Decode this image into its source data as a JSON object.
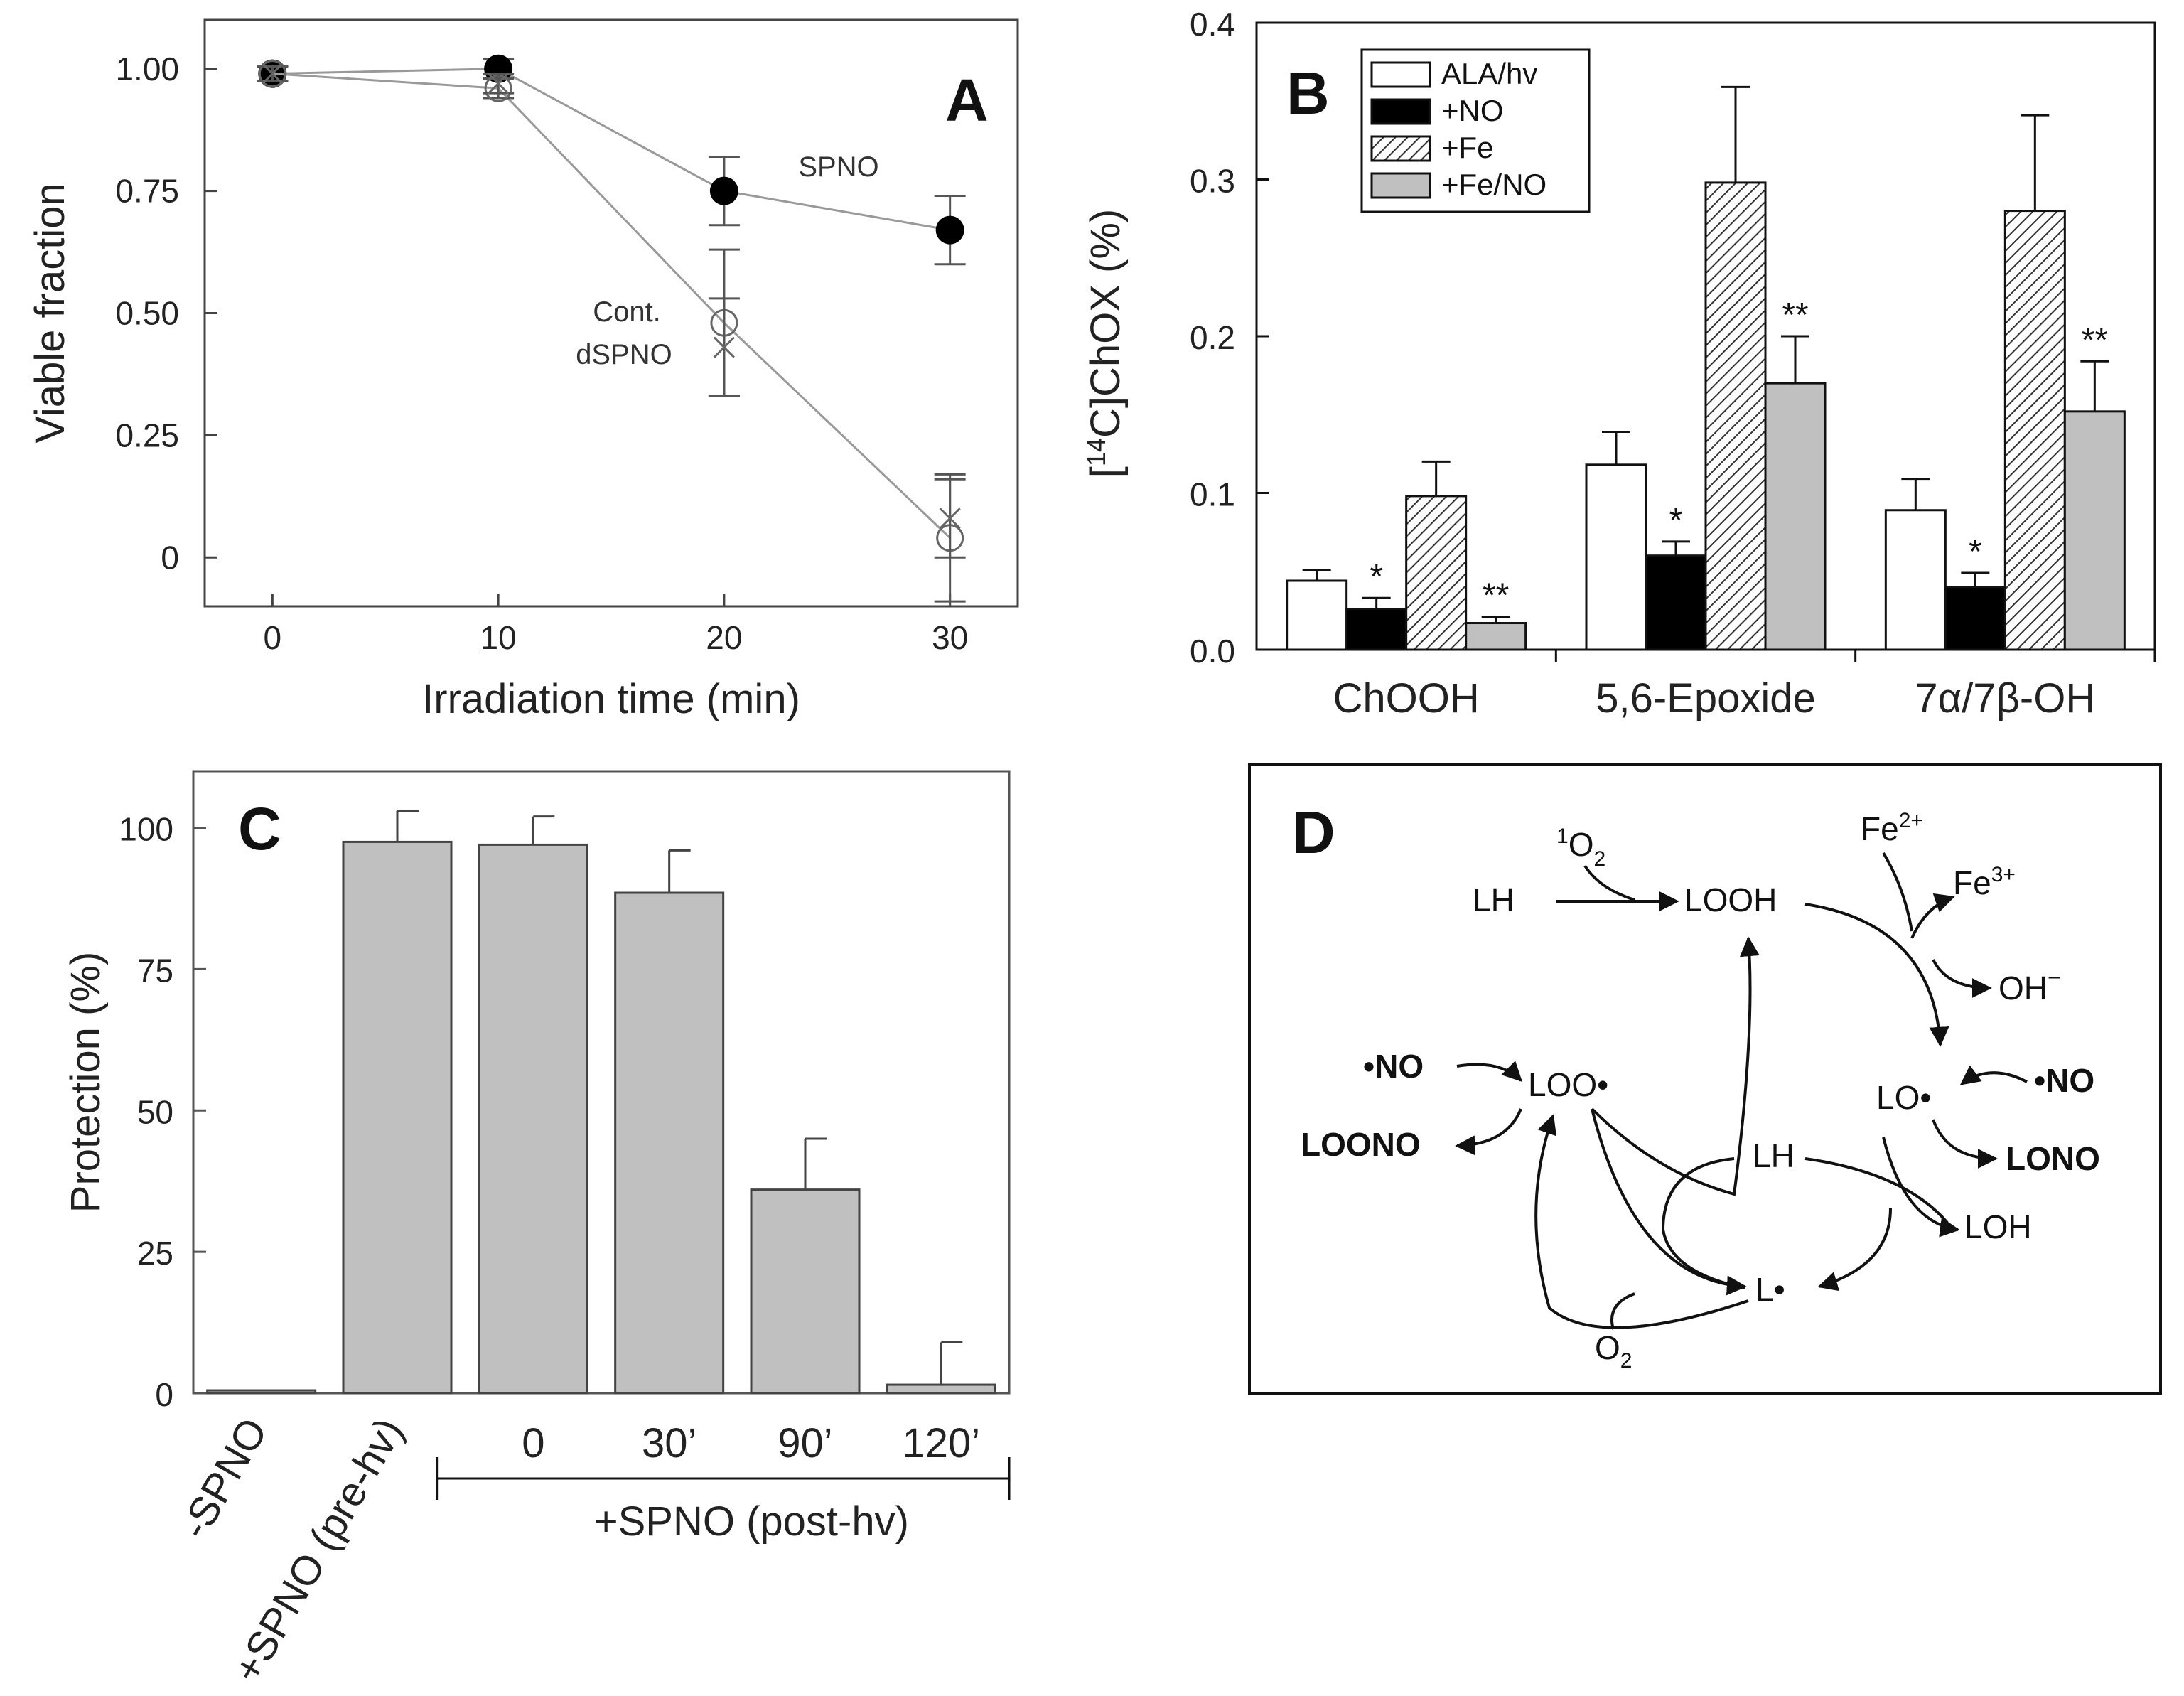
{
  "chart_data": [
    {
      "panel": "A",
      "type": "line",
      "label": "A",
      "xlabel": "Irradiation time (min)",
      "ylabel": "Viable fraction",
      "xlim": [
        -3,
        33
      ],
      "ylim": [
        -0.1,
        1.1
      ],
      "xticks": [
        0,
        10,
        20,
        30
      ],
      "yticks": [
        1.0,
        0.75,
        0.5,
        0.25,
        0
      ],
      "ytick_labels": [
        "1.00",
        "0.75",
        "0.50",
        "0.25",
        "0"
      ],
      "series": [
        {
          "name": "SPNO",
          "marker": "filled-circle",
          "x": [
            0,
            10,
            20,
            30
          ],
          "y": [
            0.99,
            1.0,
            0.75,
            0.67
          ],
          "err": [
            0.015,
            0.02,
            0.07,
            0.07
          ]
        },
        {
          "name": "Cont.",
          "marker": "open-circle",
          "x": [
            0,
            10,
            20,
            30
          ],
          "y": [
            0.99,
            0.96,
            0.48,
            0.04
          ],
          "err": [
            0.015,
            0.02,
            0.15,
            0.13
          ]
        },
        {
          "name": "dSPNO",
          "marker": "cross",
          "x": [
            0,
            10,
            20,
            30
          ],
          "y": [
            0.99,
            0.97,
            0.43,
            0.08
          ],
          "err": [
            0.015,
            0.02,
            0.1,
            0.08
          ]
        }
      ],
      "annotations": {
        "spno": "SPNO",
        "cont": "Cont.",
        "dspno": "dSPNO"
      }
    },
    {
      "panel": "B",
      "type": "bar",
      "label": "B",
      "ylabel_main": "ChOX (%)",
      "ylabel_iso": "14",
      "ylabel_bracket_open": "[",
      "ylabel_bracket_close": "C]",
      "ylim": [
        0,
        0.4
      ],
      "yticks": [
        0.0,
        0.1,
        0.2,
        0.3,
        0.4
      ],
      "ytick_labels": [
        "0.0",
        "0.1",
        "0.2",
        "0.3",
        "0.4"
      ],
      "categories": [
        "ChOOH",
        "5,6-Epoxide",
        "7α/7β-OH"
      ],
      "series": [
        {
          "name": "ALA/hv",
          "fill": "white",
          "values": [
            0.044,
            0.118,
            0.089
          ],
          "err": [
            0.007,
            0.021,
            0.02
          ],
          "sig": [
            "",
            "",
            ""
          ]
        },
        {
          "name": "+NO",
          "fill": "black",
          "values": [
            0.026,
            0.06,
            0.04
          ],
          "err": [
            0.007,
            0.009,
            0.009
          ],
          "sig": [
            "*",
            "*",
            "*"
          ]
        },
        {
          "name": "+Fe",
          "fill": "hatch",
          "values": [
            0.098,
            0.298,
            0.28
          ],
          "err": [
            0.022,
            0.061,
            0.061
          ],
          "sig": [
            "",
            "",
            ""
          ]
        },
        {
          "name": "+Fe/NO",
          "fill": "gray",
          "values": [
            0.017,
            0.17,
            0.152
          ],
          "err": [
            0.004,
            0.03,
            0.032
          ],
          "sig": [
            "**",
            "**",
            "**"
          ]
        }
      ],
      "legend": [
        "ALA/hv",
        "+NO",
        "+Fe",
        "+Fe/NO"
      ],
      "legend_position": "top-left"
    },
    {
      "panel": "C",
      "type": "bar",
      "label": "C",
      "ylabel": "Protection (%)",
      "ylim": [
        0,
        110
      ],
      "yticks": [
        0,
        25,
        50,
        75,
        100
      ],
      "ytick_labels": [
        "0",
        "25",
        "50",
        "75",
        "100"
      ],
      "categories": [
        "-SPNO",
        "+SPNO (pre-hv)",
        "0",
        "30’",
        "90’",
        "120’"
      ],
      "values": [
        0.5,
        97.5,
        97,
        88.5,
        36,
        1.5
      ],
      "err": [
        0,
        5.5,
        5,
        7.5,
        9,
        7.5
      ],
      "group_label": "+SPNO (post-hv)"
    }
  ],
  "diagram": {
    "panel": "D",
    "label": "D",
    "nodes": {
      "lh_top": "LH",
      "singlet_o2": "O",
      "singlet_o2_sup": "1",
      "singlet_o2_sub": "2",
      "looh": "LOOH",
      "fe2": "Fe",
      "fe2_sup": "2+",
      "fe3": "Fe",
      "fe3_sup": "3+",
      "oh": "OH",
      "oh_sup": "−",
      "no_left": "NO",
      "no_right": "NO",
      "radical_dot": "•",
      "loo": "LOO•",
      "loono": "LOONO",
      "lo": "LO•",
      "lono": "LONO",
      "lh_mid": "LH",
      "loh": "LOH",
      "l_rad": "L•",
      "o2": "O",
      "o2_sub": "2"
    }
  }
}
